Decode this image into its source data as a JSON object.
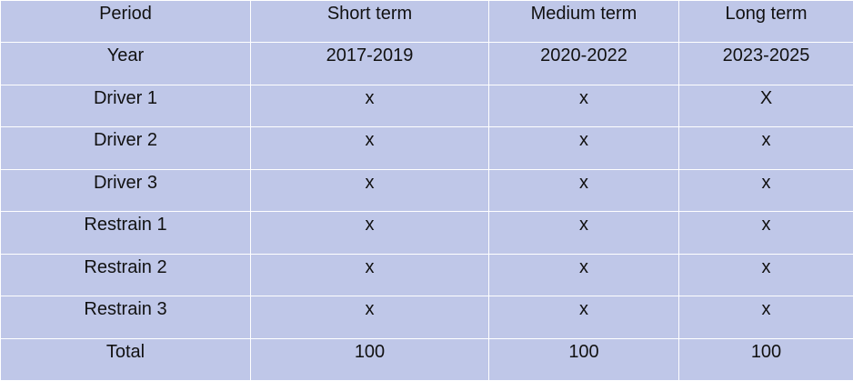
{
  "table": {
    "rows": [
      [
        "Period",
        "Short term",
        "Medium term",
        "Long term"
      ],
      [
        "Year",
        "2017-2019",
        "2020-2022",
        "2023-2025"
      ],
      [
        "Driver 1",
        "x",
        "x",
        "X"
      ],
      [
        "Driver 2",
        "x",
        "x",
        "x"
      ],
      [
        "Driver 3",
        "x",
        "x",
        "x"
      ],
      [
        "Restrain 1",
        "x",
        "x",
        "x"
      ],
      [
        "Restrain 2",
        "x",
        "x",
        "x"
      ],
      [
        "Restrain 3",
        "x",
        "x",
        "x"
      ],
      [
        "Total",
        "100",
        "100",
        "100"
      ]
    ]
  },
  "colors": {
    "cell_background": "#bfc7e8",
    "border": "#ffffff",
    "text": "#111111"
  }
}
